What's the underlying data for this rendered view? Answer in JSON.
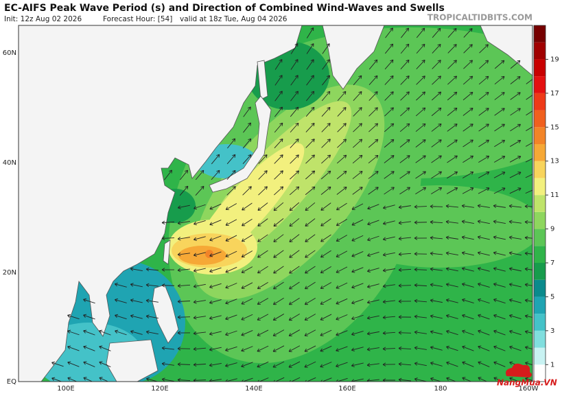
{
  "header": {
    "title": "EC-AIFS Peak Wave Period (s) and Direction of Combined Wind-Waves and Swells",
    "init": "Init: 12z Aug 02 2026",
    "forecast_hour": "Forecast Hour: [54]",
    "valid": "valid at 18z Tue, Aug 04 2026",
    "source": "TROPICALTIDBITS.COM"
  },
  "map": {
    "lat_labels": [
      "60N",
      "40N",
      "20N",
      "EQ"
    ],
    "lon_labels": [
      "100E",
      "120E",
      "140E",
      "160E",
      "180",
      "160W"
    ]
  },
  "colorbar": {
    "labels": [
      "1",
      "3",
      "5",
      "7",
      "9",
      "11",
      "13",
      "15",
      "17",
      "19"
    ],
    "colors": [
      "#ffffff",
      "#c8f2f2",
      "#80dede",
      "#44c2c8",
      "#1fa4b2",
      "#0a8a8c",
      "#179c4c",
      "#2fb449",
      "#5cc656",
      "#8ed65e",
      "#bfe36a",
      "#f2f07e",
      "#f8d45c",
      "#f6a836",
      "#f28428",
      "#f0601e",
      "#ee3a18",
      "#e41010",
      "#c80000",
      "#a00000",
      "#760000"
    ]
  },
  "watermark": "NangMua.VN"
}
